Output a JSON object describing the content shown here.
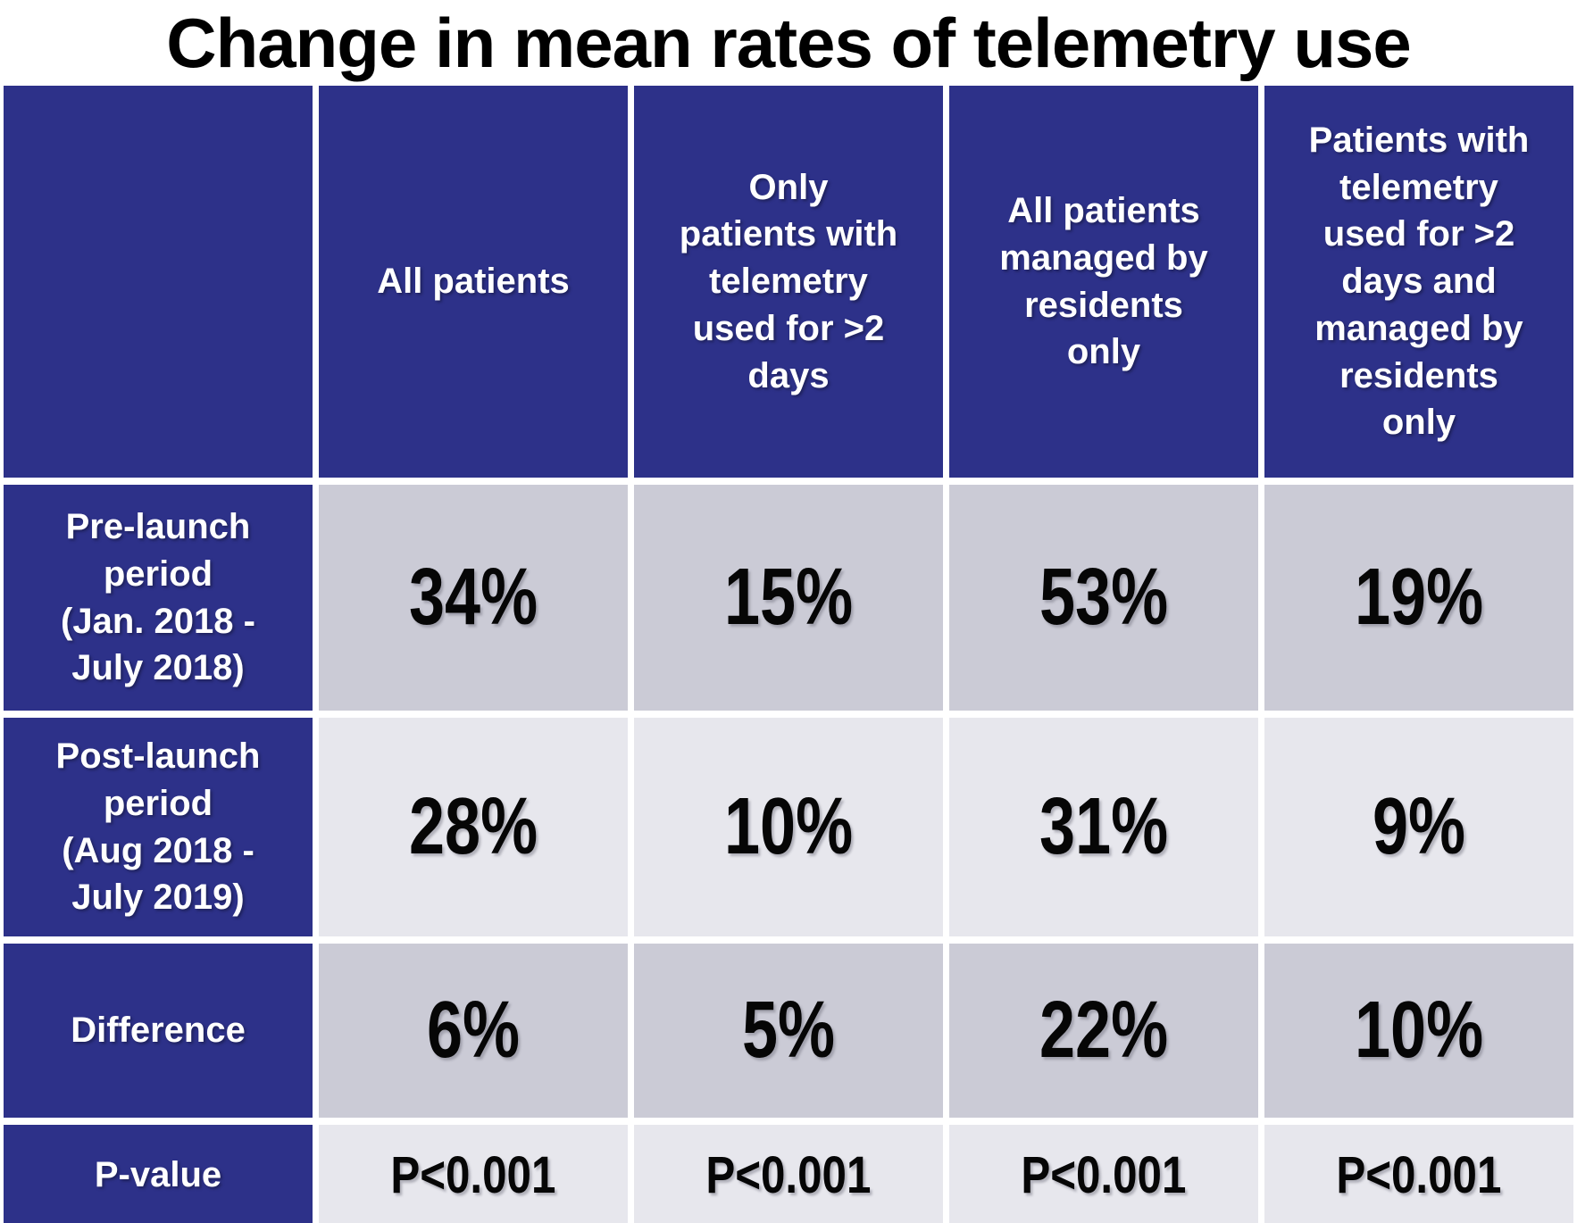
{
  "title": "Change in mean rates of telemetry use",
  "colors": {
    "header_blue": "#2d3189",
    "band_dark_gray": "#cbcbd6",
    "band_light_gray": "#e7e7ed",
    "title_text": "#000000",
    "header_text": "#ffffff",
    "value_text": "#060606",
    "grid_gap_white": "#ffffff"
  },
  "table": {
    "column_headers": [
      "",
      "All patients",
      "Only\npatients with\ntelemetry\nused for >2\ndays",
      "All patients\nmanaged by\nresidents\nonly",
      "Patients with\ntelemetry\nused for >2\ndays and\nmanaged by\nresidents\nonly"
    ],
    "rows": [
      {
        "label": "Pre-launch\nperiod\n(Jan. 2018 -\nJuly 2018)",
        "values": [
          "34%",
          "15%",
          "53%",
          "19%"
        ]
      },
      {
        "label": "Post-launch\nperiod\n(Aug 2018 -\nJuly 2019)",
        "values": [
          "28%",
          "10%",
          "31%",
          "9%"
        ]
      },
      {
        "label": "Difference",
        "values": [
          "6%",
          "5%",
          "22%",
          "10%"
        ]
      },
      {
        "label": "P-value",
        "values": [
          "P<0.001",
          "P<0.001",
          "P<0.001",
          "P<0.001"
        ]
      }
    ]
  },
  "chart_data": {
    "type": "table",
    "title": "Change in mean rates of telemetry use",
    "columns": [
      "All patients",
      "Only patients with telemetry used for >2 days",
      "All patients managed by residents only",
      "Patients with telemetry used for >2 days and managed by residents only"
    ],
    "rows": [
      {
        "label": "Pre-launch period (Jan. 2018 - July 2018)",
        "values_pct": [
          34,
          15,
          53,
          19
        ]
      },
      {
        "label": "Post-launch period (Aug 2018 - July 2019)",
        "values_pct": [
          28,
          10,
          31,
          9
        ]
      },
      {
        "label": "Difference",
        "values_pct": [
          6,
          5,
          22,
          10
        ]
      },
      {
        "label": "P-value",
        "values": [
          "P<0.001",
          "P<0.001",
          "P<0.001",
          "P<0.001"
        ]
      }
    ],
    "layout": {
      "header_fill": "#2d3189",
      "row_banding": [
        "#cbcbd6",
        "#e7e7ed"
      ],
      "grid": "white gaps"
    }
  }
}
